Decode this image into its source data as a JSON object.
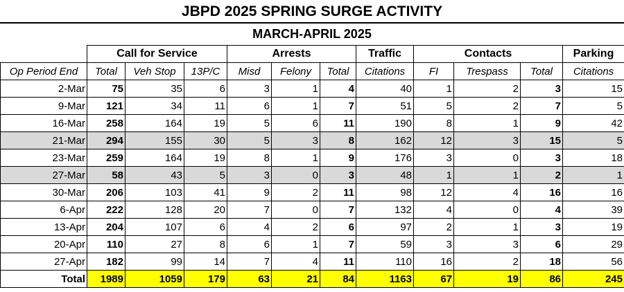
{
  "title": "JBPD 2025 SPRING SURGE ACTIVITY",
  "subtitle": "MARCH-APRIL 2025",
  "groups": {
    "calls": "Call for Service",
    "arrests": "Arrests",
    "traffic": "Traffic",
    "contacts": "Contacts",
    "parking": "Parking"
  },
  "columns": [
    "Op Period End",
    "Total",
    "Veh Stop",
    "13P/C",
    "Misd",
    "Felony",
    "Total",
    "Citations",
    "FI",
    "Trespass",
    "Total",
    "Citations"
  ],
  "bold_columns": [
    1,
    6,
    10
  ],
  "rows": [
    {
      "cells": [
        "2-Mar",
        "75",
        "35",
        "6",
        "3",
        "1",
        "4",
        "40",
        "1",
        "2",
        "3",
        "15"
      ],
      "highlighted": false
    },
    {
      "cells": [
        "9-Mar",
        "121",
        "34",
        "11",
        "6",
        "1",
        "7",
        "51",
        "5",
        "2",
        "7",
        "5"
      ],
      "highlighted": false
    },
    {
      "cells": [
        "16-Mar",
        "258",
        "164",
        "19",
        "5",
        "6",
        "11",
        "190",
        "8",
        "1",
        "9",
        "42"
      ],
      "highlighted": false
    },
    {
      "cells": [
        "21-Mar",
        "294",
        "155",
        "30",
        "5",
        "3",
        "8",
        "162",
        "12",
        "3",
        "15",
        "5"
      ],
      "highlighted": true
    },
    {
      "cells": [
        "23-Mar",
        "259",
        "164",
        "19",
        "8",
        "1",
        "9",
        "176",
        "3",
        "0",
        "3",
        "18"
      ],
      "highlighted": false
    },
    {
      "cells": [
        "27-Mar",
        "58",
        "43",
        "5",
        "3",
        "0",
        "3",
        "48",
        "1",
        "1",
        "2",
        "1"
      ],
      "highlighted": true
    },
    {
      "cells": [
        "30-Mar",
        "206",
        "103",
        "41",
        "9",
        "2",
        "11",
        "98",
        "12",
        "4",
        "16",
        "16"
      ],
      "highlighted": false
    },
    {
      "cells": [
        "6-Apr",
        "222",
        "128",
        "20",
        "7",
        "0",
        "7",
        "132",
        "4",
        "0",
        "4",
        "39"
      ],
      "highlighted": false
    },
    {
      "cells": [
        "13-Apr",
        "204",
        "107",
        "6",
        "4",
        "2",
        "6",
        "97",
        "2",
        "1",
        "3",
        "19"
      ],
      "highlighted": false
    },
    {
      "cells": [
        "20-Apr",
        "110",
        "27",
        "8",
        "6",
        "1",
        "7",
        "59",
        "3",
        "3",
        "6",
        "29"
      ],
      "highlighted": false
    },
    {
      "cells": [
        "27-Apr",
        "182",
        "99",
        "14",
        "7",
        "4",
        "11",
        "110",
        "16",
        "2",
        "18",
        "56"
      ],
      "highlighted": false
    }
  ],
  "totals": [
    "Total",
    "1989",
    "1059",
    "179",
    "63",
    "21",
    "84",
    "1163",
    "67",
    "19",
    "86",
    "245"
  ],
  "colors": {
    "highlight_row": "#d9d9d9",
    "totals_fill": "#ffff00"
  }
}
